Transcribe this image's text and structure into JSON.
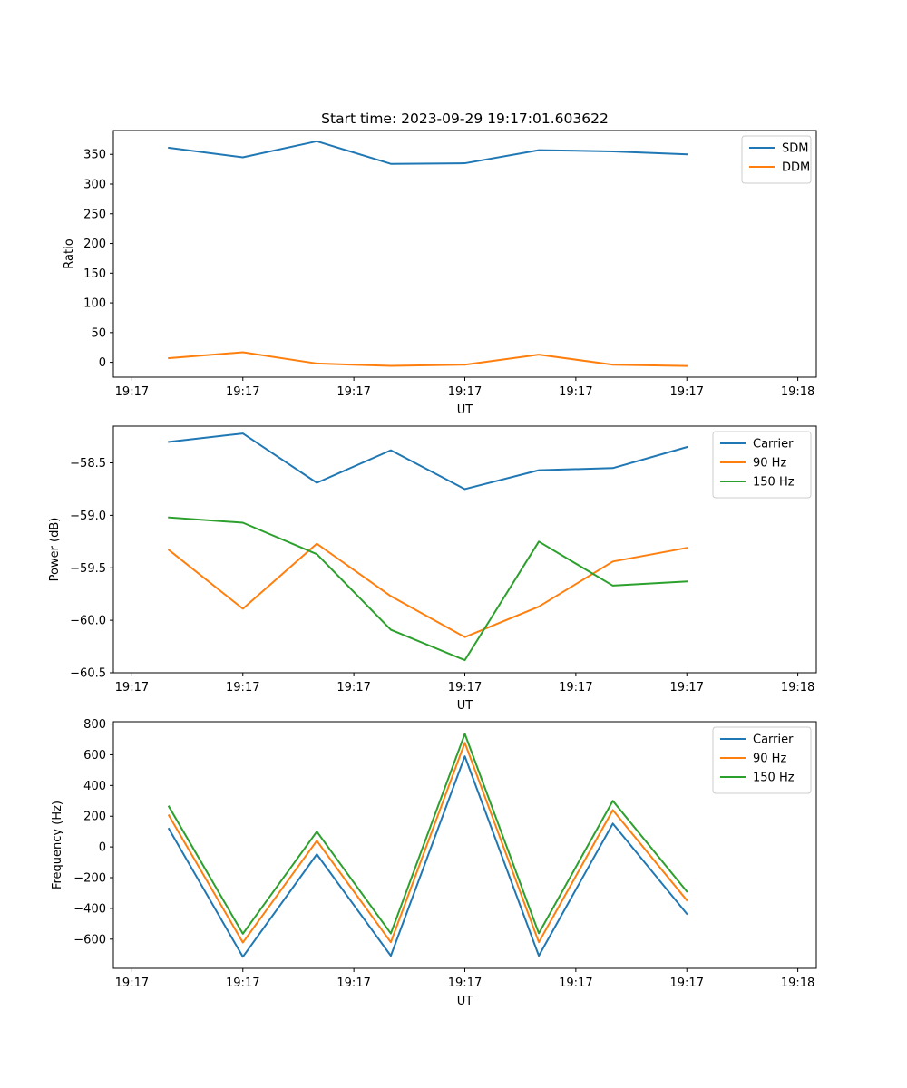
{
  "chart_data": [
    {
      "type": "line",
      "title": "Start time: 2023-09-29 19:17:01.603622",
      "xlabel": "UT",
      "ylabel": "Ratio",
      "xlim": [
        -0.25,
        9.25
      ],
      "ylim": [
        -25,
        390
      ],
      "x": [
        0.5,
        1.5,
        2.5,
        3.5,
        4.5,
        5.5,
        6.5,
        7.5
      ],
      "x_ticks": [
        {
          "value": 0,
          "label": "19:17"
        },
        {
          "value": 1.5,
          "label": "19:17"
        },
        {
          "value": 3,
          "label": "19:17"
        },
        {
          "value": 4.5,
          "label": "19:17"
        },
        {
          "value": 6,
          "label": "19:17"
        },
        {
          "value": 7.5,
          "label": "19:17"
        },
        {
          "value": 9,
          "label": "19:18"
        }
      ],
      "y_ticks": [
        "0",
        "50",
        "100",
        "150",
        "200",
        "250",
        "300",
        "350"
      ],
      "y_tick_values": [
        0,
        50,
        100,
        150,
        200,
        250,
        300,
        350
      ],
      "legend_location": "top-right",
      "series": [
        {
          "name": "SDM",
          "color": "#1f77b4",
          "values": [
            361,
            345,
            372,
            334,
            335,
            357,
            355,
            350
          ]
        },
        {
          "name": "DDM",
          "color": "#ff7f0e",
          "values": [
            7,
            17,
            -2,
            -6,
            -4,
            13,
            -4,
            -6
          ]
        }
      ]
    },
    {
      "type": "line",
      "title": "",
      "xlabel": "UT",
      "ylabel": "Power (dB)",
      "xlim": [
        -0.25,
        9.25
      ],
      "ylim": [
        -60.5,
        -58.15
      ],
      "x": [
        0.5,
        1.5,
        2.5,
        3.5,
        4.5,
        5.5,
        6.5,
        7.5
      ],
      "x_ticks": [
        {
          "value": 0,
          "label": "19:17"
        },
        {
          "value": 1.5,
          "label": "19:17"
        },
        {
          "value": 3,
          "label": "19:17"
        },
        {
          "value": 4.5,
          "label": "19:17"
        },
        {
          "value": 6,
          "label": "19:17"
        },
        {
          "value": 7.5,
          "label": "19:17"
        },
        {
          "value": 9,
          "label": "19:18"
        }
      ],
      "y_ticks": [
        "−60.5",
        "−60.0",
        "−59.5",
        "−59.0",
        "−58.5"
      ],
      "y_tick_values": [
        -60.5,
        -60.0,
        -59.5,
        -59.0,
        -58.5
      ],
      "legend_location": "top-right",
      "series": [
        {
          "name": "Carrier",
          "color": "#1f77b4",
          "values": [
            -58.3,
            -58.22,
            -58.69,
            -58.38,
            -58.75,
            -58.57,
            -58.55,
            -58.35
          ]
        },
        {
          "name": "90 Hz",
          "color": "#ff7f0e",
          "values": [
            -59.33,
            -59.89,
            -59.27,
            -59.77,
            -60.16,
            -59.87,
            -59.44,
            -59.31
          ]
        },
        {
          "name": "150 Hz",
          "color": "#2ca02c",
          "values": [
            -59.02,
            -59.07,
            -59.37,
            -60.09,
            -60.38,
            -59.25,
            -59.67,
            -59.63
          ]
        }
      ]
    },
    {
      "type": "line",
      "title": "",
      "xlabel": "UT",
      "ylabel": "Frequency (Hz)",
      "xlim": [
        -0.25,
        9.25
      ],
      "ylim": [
        -790,
        815
      ],
      "x": [
        0.5,
        1.5,
        2.5,
        3.5,
        4.5,
        5.5,
        6.5,
        7.5
      ],
      "x_ticks": [
        {
          "value": 0,
          "label": "19:17"
        },
        {
          "value": 1.5,
          "label": "19:17"
        },
        {
          "value": 3,
          "label": "19:17"
        },
        {
          "value": 4.5,
          "label": "19:17"
        },
        {
          "value": 6,
          "label": "19:17"
        },
        {
          "value": 7.5,
          "label": "19:17"
        },
        {
          "value": 9,
          "label": "19:18"
        }
      ],
      "y_ticks": [
        "−600",
        "−400",
        "−200",
        "0",
        "200",
        "400",
        "600",
        "800"
      ],
      "y_tick_values": [
        -600,
        -400,
        -200,
        0,
        200,
        400,
        600,
        800
      ],
      "legend_location": "top-right",
      "series": [
        {
          "name": "Carrier",
          "color": "#1f77b4",
          "values": [
            118,
            -715,
            -48,
            -708,
            590,
            -708,
            152,
            -435
          ]
        },
        {
          "name": "90 Hz",
          "color": "#ff7f0e",
          "values": [
            205,
            -622,
            40,
            -620,
            678,
            -620,
            240,
            -347
          ]
        },
        {
          "name": "150 Hz",
          "color": "#2ca02c",
          "values": [
            263,
            -565,
            100,
            -563,
            736,
            -562,
            300,
            -290
          ]
        }
      ]
    }
  ]
}
